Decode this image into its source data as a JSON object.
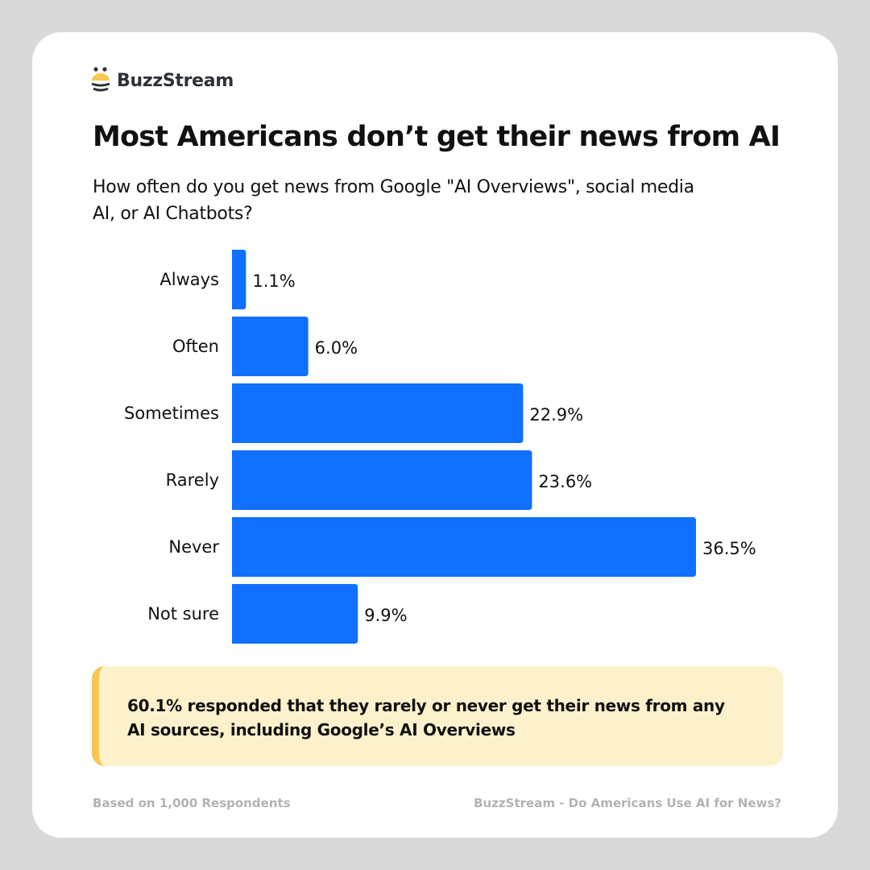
{
  "brand": {
    "name": "BuzzStream",
    "logo_icon": "bee-icon",
    "colors": {
      "yellow": "#f8c652",
      "dark": "#2d3138"
    }
  },
  "title": "Most Americans don’t get their news from AI",
  "subtitle": "How often do you get news from Google \"AI Overviews\", social media AI, or AI Chatbots?",
  "chart_data": {
    "type": "bar",
    "orientation": "horizontal",
    "categories": [
      "Always",
      "Often",
      "Sometimes",
      "Rarely",
      "Never",
      "Not sure"
    ],
    "values": [
      1.1,
      6.0,
      22.9,
      23.6,
      36.5,
      9.9
    ],
    "labels": [
      "1.1%",
      "6.0%",
      "22.9%",
      "23.6%",
      "36.5%",
      "9.9%"
    ],
    "unit": "%",
    "bar_color": "#1170ff",
    "grid": false
  },
  "callout": {
    "text": "60.1% responded that they rarely or never get their news from any AI sources, including Google’s AI Overviews"
  },
  "footer": {
    "left": "Based on 1,000 Respondents",
    "right": "BuzzStream - Do Americans Use AI for News?"
  }
}
